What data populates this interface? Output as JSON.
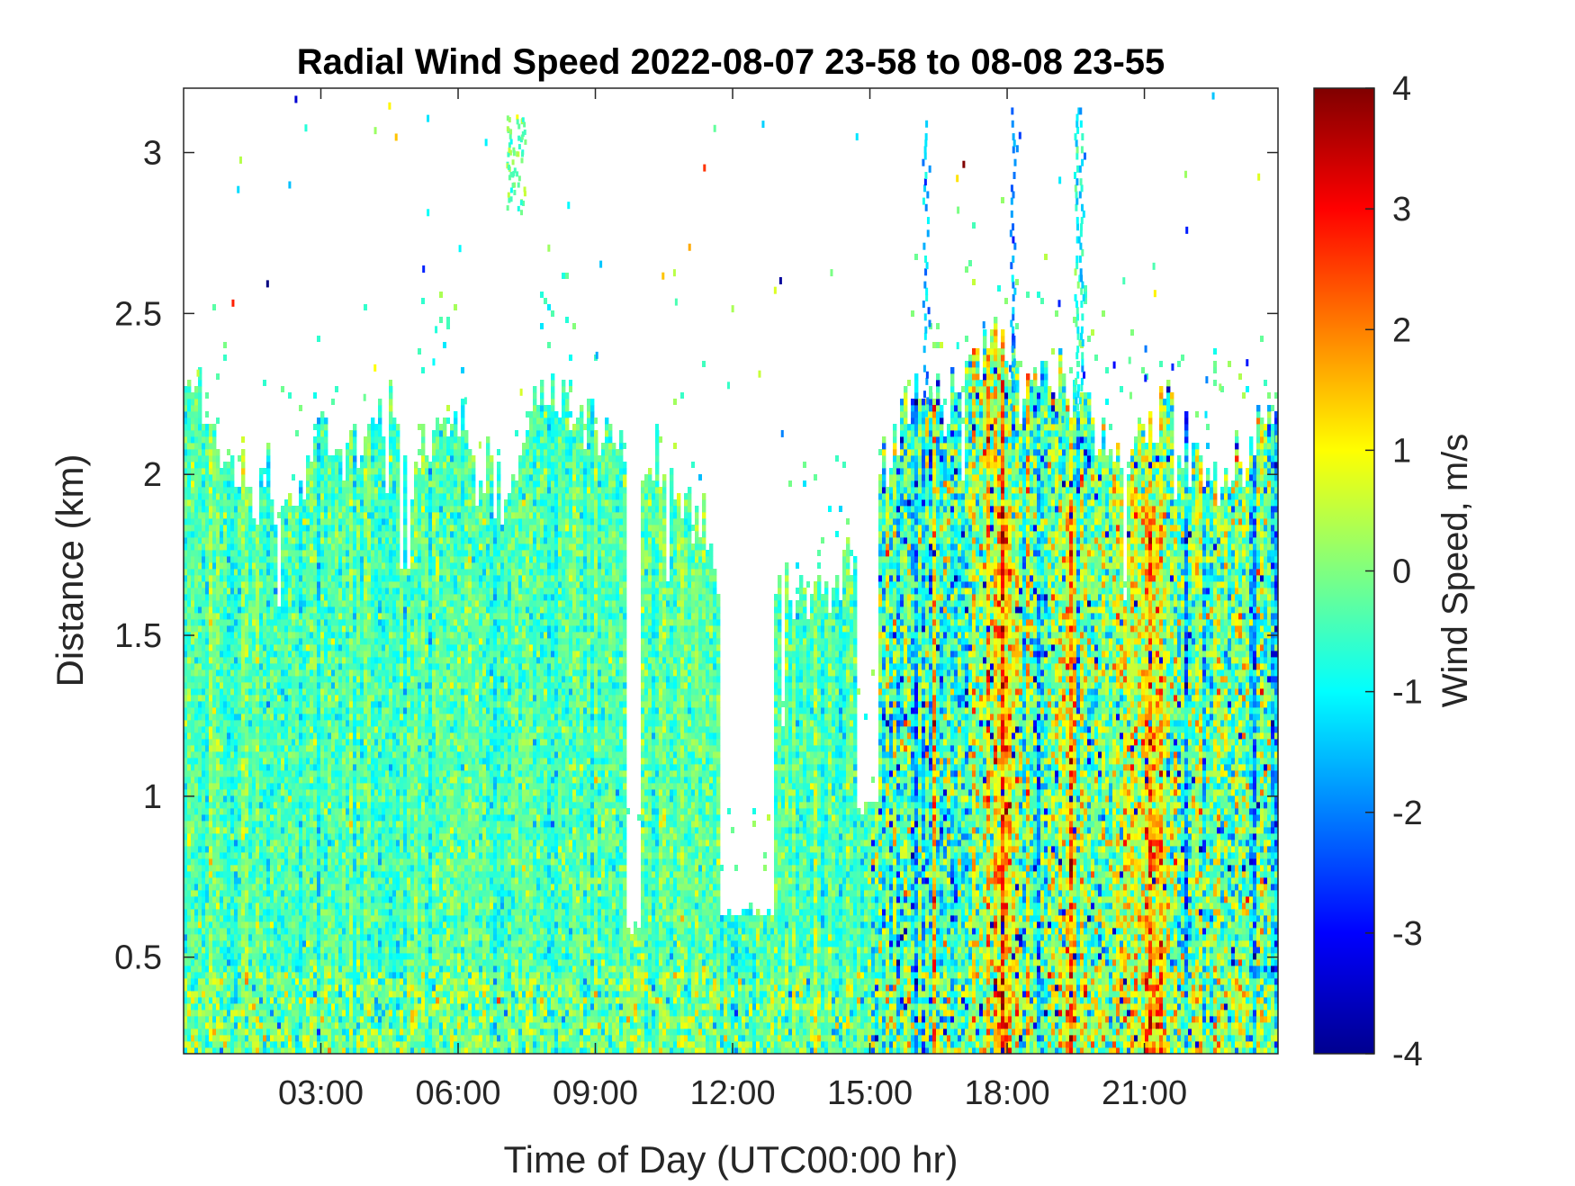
{
  "chart_data": {
    "type": "heatmap",
    "title": "Radial Wind Speed 2022-08-07 23-58 to 08-08 23-55",
    "xlabel": "Time of Day (UTC00:00 hr)",
    "ylabel": "Distance (km)",
    "xlim_hours": [
      0,
      23.92
    ],
    "ylim_km": [
      0.2,
      3.2
    ],
    "x_ticks": [
      {
        "hours": 3,
        "label": "03:00"
      },
      {
        "hours": 6,
        "label": "06:00"
      },
      {
        "hours": 9,
        "label": "09:00"
      },
      {
        "hours": 12,
        "label": "12:00"
      },
      {
        "hours": 15,
        "label": "15:00"
      },
      {
        "hours": 18,
        "label": "18:00"
      },
      {
        "hours": 21,
        "label": "21:00"
      }
    ],
    "y_ticks": [
      {
        "km": 0.5,
        "label": "0.5"
      },
      {
        "km": 1,
        "label": "1"
      },
      {
        "km": 1.5,
        "label": "1.5"
      },
      {
        "km": 2,
        "label": "2"
      },
      {
        "km": 2.5,
        "label": "2.5"
      },
      {
        "km": 3,
        "label": "3"
      }
    ],
    "colorbar": {
      "label": "Wind Speed, m/s",
      "colormap": "jet",
      "clim": [
        -4,
        4
      ],
      "ticks": [
        {
          "value": 4,
          "label": "4"
        },
        {
          "value": 3,
          "label": "3"
        },
        {
          "value": 2,
          "label": "2"
        },
        {
          "value": 1,
          "label": "1"
        },
        {
          "value": 0,
          "label": "0"
        },
        {
          "value": -1,
          "label": "-1"
        },
        {
          "value": -2,
          "label": "-2"
        },
        {
          "value": -3,
          "label": "-3"
        },
        {
          "value": -4,
          "label": "-4"
        }
      ]
    },
    "data_top_km": [
      [
        0.0,
        2.3
      ],
      [
        0.5,
        2.2
      ],
      [
        1.0,
        2.0
      ],
      [
        1.8,
        1.95
      ],
      [
        2.5,
        1.95
      ],
      [
        3.0,
        2.15
      ],
      [
        3.8,
        2.05
      ],
      [
        4.3,
        2.3
      ],
      [
        5.0,
        2.05
      ],
      [
        5.5,
        2.1
      ],
      [
        6.0,
        2.15
      ],
      [
        6.6,
        1.95
      ],
      [
        7.2,
        2.0
      ],
      [
        8.0,
        2.3
      ],
      [
        8.6,
        2.15
      ],
      [
        9.3,
        2.1
      ],
      [
        9.6,
        2.05
      ],
      [
        10.0,
        2.0
      ],
      [
        10.5,
        1.98
      ],
      [
        11.0,
        1.92
      ],
      [
        11.4,
        1.85
      ],
      [
        11.7,
        1.65
      ],
      [
        12.0,
        1.6
      ],
      [
        12.3,
        1.62
      ],
      [
        12.6,
        1.75
      ],
      [
        13.0,
        1.7
      ],
      [
        13.5,
        1.6
      ],
      [
        14.0,
        1.65
      ],
      [
        14.4,
        1.7
      ],
      [
        14.9,
        1.8
      ],
      [
        15.3,
        2.0
      ],
      [
        15.8,
        2.2
      ],
      [
        16.5,
        2.25
      ],
      [
        17.2,
        2.35
      ],
      [
        17.8,
        2.45
      ],
      [
        18.3,
        2.25
      ],
      [
        18.7,
        2.3
      ],
      [
        19.0,
        2.2
      ],
      [
        19.7,
        2.25
      ],
      [
        20.3,
        2.05
      ],
      [
        21.0,
        2.1
      ],
      [
        21.5,
        2.25
      ],
      [
        22.0,
        2.1
      ],
      [
        22.6,
        1.95
      ],
      [
        23.2,
        2.05
      ],
      [
        23.92,
        2.25
      ]
    ],
    "data_gaps": [
      {
        "from_hours": 9.7,
        "to_hours": 10.0,
        "below_km": 0.55
      },
      {
        "from_hours": 11.7,
        "to_hours": 12.9,
        "below_km": 0.62
      },
      {
        "from_hours": 14.7,
        "to_hours": 15.2,
        "below_km": 0.95
      }
    ],
    "convective_period_hours": [
      15,
      23.92
    ],
    "strong_positive_bands": [
      {
        "hours": 18.0,
        "speed_ms": 2.5
      },
      {
        "hours": 19.4,
        "speed_ms": 2.2
      },
      {
        "hours": 21.2,
        "speed_ms": 3.0
      }
    ]
  }
}
